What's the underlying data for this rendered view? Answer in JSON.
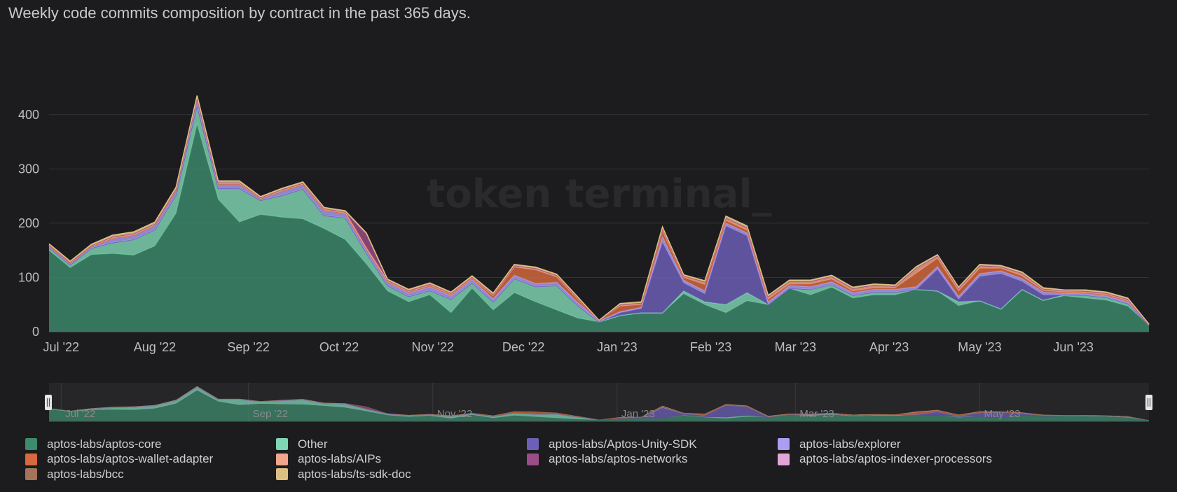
{
  "header": {
    "title": "Weekly code commits composition by contract in the past 365 days."
  },
  "watermark": "token terminal_",
  "chart_data": {
    "type": "area",
    "stacked": true,
    "title": "Weekly code commits composition by contract in the past 365 days.",
    "ylim": [
      0,
      450
    ],
    "y_ticks": [
      0,
      100,
      200,
      300,
      400
    ],
    "grid": true,
    "x": [
      "2022-06-27",
      "2022-07-04",
      "2022-07-11",
      "2022-07-18",
      "2022-07-25",
      "2022-08-01",
      "2022-08-08",
      "2022-08-15",
      "2022-08-22",
      "2022-08-29",
      "2022-09-05",
      "2022-09-12",
      "2022-09-19",
      "2022-09-26",
      "2022-10-03",
      "2022-10-10",
      "2022-10-17",
      "2022-10-24",
      "2022-10-31",
      "2022-11-07",
      "2022-11-14",
      "2022-11-21",
      "2022-11-28",
      "2022-12-05",
      "2022-12-12",
      "2022-12-19",
      "2022-12-26",
      "2023-01-02",
      "2023-01-09",
      "2023-01-16",
      "2023-01-23",
      "2023-01-30",
      "2023-02-06",
      "2023-02-13",
      "2023-02-20",
      "2023-02-27",
      "2023-03-06",
      "2023-03-13",
      "2023-03-20",
      "2023-03-27",
      "2023-04-03",
      "2023-04-10",
      "2023-04-17",
      "2023-04-24",
      "2023-05-01",
      "2023-05-08",
      "2023-05-15",
      "2023-05-22",
      "2023-05-29",
      "2023-06-05",
      "2023-06-12",
      "2023-06-19",
      "2023-06-26"
    ],
    "x_tick_labels": [
      {
        "date": "2022-07-01",
        "label": "Jul '22"
      },
      {
        "date": "2022-08-01",
        "label": "Aug '22"
      },
      {
        "date": "2022-09-01",
        "label": "Sep '22"
      },
      {
        "date": "2022-10-01",
        "label": "Oct '22"
      },
      {
        "date": "2022-11-01",
        "label": "Nov '22"
      },
      {
        "date": "2022-12-01",
        "label": "Dec '22"
      },
      {
        "date": "2023-01-01",
        "label": "Jan '23"
      },
      {
        "date": "2023-02-01",
        "label": "Feb '23"
      },
      {
        "date": "2023-03-01",
        "label": "Mar '23"
      },
      {
        "date": "2023-04-01",
        "label": "Apr '23"
      },
      {
        "date": "2023-05-01",
        "label": "May '23"
      },
      {
        "date": "2023-06-01",
        "label": "Jun '23"
      }
    ],
    "navigator_tick_labels": [
      {
        "date": "2022-07-01",
        "label": "Jul '22"
      },
      {
        "date": "2022-09-01",
        "label": "Sep '22"
      },
      {
        "date": "2022-11-01",
        "label": "Nov '22"
      },
      {
        "date": "2023-01-01",
        "label": "Jan '23"
      },
      {
        "date": "2023-03-01",
        "label": "Mar '23"
      },
      {
        "date": "2023-05-01",
        "label": "May '23"
      }
    ],
    "legend_placement": "bottom",
    "series": [
      {
        "name": "aptos-labs/aptos-core",
        "color": "#3d8a6c",
        "values": [
          150,
          118,
          142,
          144,
          141,
          158,
          218,
          382,
          244,
          202,
          216,
          211,
          208,
          190,
          170,
          125,
          75,
          55,
          68,
          35,
          80,
          40,
          72,
          55,
          40,
          25,
          18,
          30,
          35,
          35,
          70,
          50,
          35,
          57,
          50,
          80,
          68,
          82,
          62,
          68,
          68,
          78,
          75,
          48,
          57,
          42,
          78,
          58,
          66,
          62,
          58,
          47,
          12
        ]
      },
      {
        "name": "Other",
        "color": "#7fd6b4",
        "values": [
          5,
          5,
          12,
          20,
          29,
          30,
          34,
          35,
          20,
          62,
          26,
          40,
          55,
          24,
          40,
          20,
          10,
          10,
          8,
          25,
          10,
          15,
          26,
          28,
          45,
          23,
          0,
          0,
          0,
          0,
          5,
          5,
          15,
          15,
          0,
          0,
          10,
          5,
          5,
          5,
          5,
          0,
          0,
          7,
          0,
          0,
          0,
          0,
          2,
          5,
          5,
          5,
          0
        ]
      },
      {
        "name": "aptos-labs/Aptos-Unity-SDK",
        "color": "#6c5fb8",
        "values": [
          0,
          0,
          0,
          0,
          0,
          0,
          0,
          0,
          0,
          0,
          0,
          0,
          0,
          0,
          0,
          0,
          0,
          0,
          0,
          0,
          0,
          0,
          0,
          0,
          0,
          0,
          0,
          5,
          8,
          130,
          15,
          15,
          145,
          105,
          0,
          0,
          0,
          0,
          0,
          0,
          0,
          0,
          40,
          5,
          45,
          65,
          15,
          10,
          0,
          0,
          0,
          0,
          0
        ]
      },
      {
        "name": "aptos-labs/explorer",
        "color": "#ab9ef2",
        "values": [
          3,
          3,
          3,
          8,
          8,
          8,
          8,
          12,
          8,
          8,
          3,
          8,
          8,
          10,
          8,
          7,
          7,
          6,
          7,
          6,
          6,
          6,
          6,
          6,
          6,
          6,
          2,
          2,
          2,
          10,
          5,
          5,
          5,
          5,
          5,
          5,
          5,
          5,
          5,
          5,
          5,
          5,
          5,
          5,
          5,
          5,
          5,
          5,
          3,
          3,
          3,
          3,
          1
        ]
      },
      {
        "name": "aptos-labs/aptos-wallet-adapter",
        "color": "#d6693d",
        "values": [
          0,
          0,
          0,
          0,
          0,
          0,
          0,
          0,
          0,
          0,
          0,
          0,
          0,
          0,
          0,
          0,
          0,
          2,
          2,
          2,
          2,
          5,
          15,
          25,
          10,
          5,
          0,
          10,
          5,
          10,
          5,
          12,
          5,
          5,
          5,
          3,
          5,
          5,
          3,
          3,
          3,
          25,
          15,
          10,
          10,
          5,
          5,
          3,
          2,
          2,
          2,
          2,
          0
        ]
      },
      {
        "name": "aptos-labs/AIPs",
        "color": "#f0a58c",
        "values": [
          2,
          2,
          2,
          3,
          3,
          3,
          3,
          3,
          3,
          3,
          2,
          3,
          3,
          3,
          3,
          3,
          3,
          3,
          3,
          3,
          3,
          3,
          3,
          3,
          3,
          3,
          0,
          3,
          3,
          5,
          3,
          5,
          5,
          5,
          5,
          5,
          5,
          5,
          5,
          5,
          3,
          10,
          5,
          5,
          5,
          3,
          5,
          3,
          3,
          3,
          3,
          3,
          0
        ]
      },
      {
        "name": "aptos-labs/aptos-networks",
        "color": "#9a4d86",
        "values": [
          0,
          0,
          0,
          0,
          0,
          0,
          0,
          0,
          0,
          0,
          0,
          0,
          0,
          0,
          0,
          25,
          0,
          0,
          0,
          0,
          0,
          0,
          0,
          0,
          0,
          0,
          0,
          0,
          0,
          0,
          0,
          0,
          0,
          0,
          0,
          0,
          0,
          0,
          0,
          0,
          0,
          0,
          0,
          0,
          0,
          0,
          0,
          0,
          0,
          0,
          0,
          0,
          0
        ]
      },
      {
        "name": "aptos-labs/aptos-indexer-processors",
        "color": "#e0a6d6",
        "values": [
          0,
          0,
          0,
          0,
          0,
          0,
          0,
          0,
          0,
          0,
          0,
          0,
          0,
          0,
          0,
          0,
          0,
          0,
          0,
          0,
          0,
          0,
          0,
          0,
          0,
          0,
          0,
          0,
          0,
          0,
          0,
          0,
          0,
          0,
          0,
          0,
          0,
          0,
          0,
          0,
          0,
          0,
          0,
          0,
          0,
          0,
          0,
          0,
          0,
          0,
          0,
          0,
          0
        ]
      },
      {
        "name": "aptos-labs/bcc",
        "color": "#a4745a",
        "values": [
          0,
          0,
          0,
          0,
          0,
          0,
          0,
          0,
          0,
          0,
          0,
          0,
          0,
          0,
          0,
          0,
          0,
          0,
          0,
          0,
          0,
          0,
          0,
          0,
          0,
          0,
          0,
          0,
          0,
          0,
          0,
          0,
          0,
          0,
          0,
          0,
          0,
          0,
          0,
          0,
          0,
          0,
          0,
          0,
          0,
          0,
          0,
          0,
          0,
          0,
          0,
          0,
          0
        ]
      },
      {
        "name": "aptos-labs/ts-sdk-doc",
        "color": "#dcc081",
        "values": [
          2,
          2,
          2,
          3,
          3,
          3,
          3,
          3,
          3,
          3,
          2,
          2,
          2,
          2,
          2,
          2,
          2,
          2,
          2,
          2,
          2,
          2,
          2,
          2,
          2,
          2,
          1,
          2,
          2,
          3,
          2,
          2,
          3,
          3,
          2,
          2,
          2,
          2,
          2,
          2,
          2,
          2,
          2,
          2,
          2,
          2,
          2,
          2,
          1,
          2,
          2,
          2,
          1
        ]
      }
    ]
  }
}
